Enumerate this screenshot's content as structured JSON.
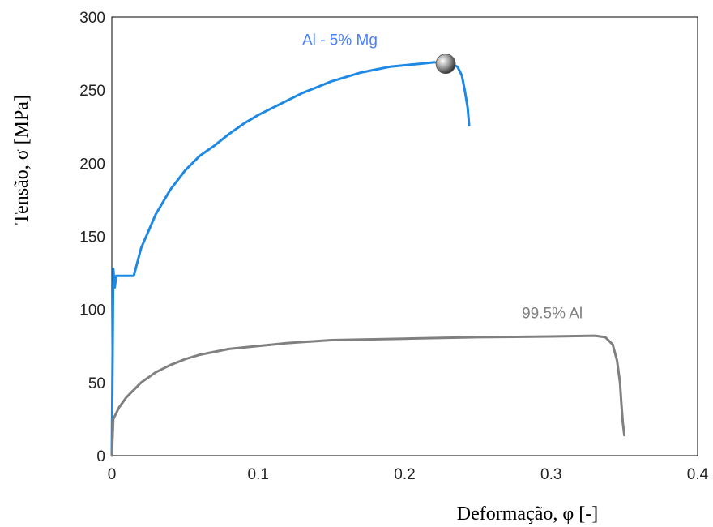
{
  "chart_data": {
    "type": "line",
    "title": "",
    "xlabel": "Deformação, φ [-]",
    "ylabel": "Tensão, σ [MPa]",
    "xlim": [
      0,
      0.4
    ],
    "ylim": [
      0,
      300
    ],
    "xticks": [
      0,
      0.1,
      0.2,
      0.3,
      0.4
    ],
    "xtick_labels": [
      "0",
      "0.1",
      "0.2",
      "0.3",
      "0.4"
    ],
    "yticks": [
      0,
      50,
      100,
      150,
      200,
      250,
      300
    ],
    "ytick_labels": [
      "0",
      "50",
      "100",
      "150",
      "200",
      "250",
      "300"
    ],
    "grid": false,
    "legend": "none",
    "series": [
      {
        "name": "Al - 5% Mg",
        "color": "#1e88e5",
        "x": [
          0,
          0.001,
          0.002,
          0.003,
          0.004,
          0.012,
          0.015,
          0.02,
          0.03,
          0.04,
          0.05,
          0.06,
          0.07,
          0.08,
          0.09,
          0.1,
          0.11,
          0.12,
          0.13,
          0.14,
          0.15,
          0.16,
          0.17,
          0.18,
          0.19,
          0.2,
          0.21,
          0.22,
          0.227,
          0.232,
          0.236,
          0.239,
          0.241,
          0.243,
          0.244
        ],
        "y": [
          0,
          128,
          115,
          123,
          123,
          123,
          123,
          142,
          165,
          182,
          195,
          205,
          212,
          220,
          227,
          233,
          238,
          243,
          248,
          252,
          256,
          259,
          262,
          264,
          266,
          267,
          268,
          269,
          269,
          268,
          266,
          260,
          250,
          238,
          226
        ],
        "end_marker": {
          "x": 0.228,
          "y": 268
        }
      },
      {
        "name": "99.5% Al",
        "color": "#808080",
        "x": [
          0,
          0.001,
          0.005,
          0.01,
          0.02,
          0.03,
          0.04,
          0.05,
          0.06,
          0.07,
          0.08,
          0.1,
          0.12,
          0.15,
          0.2,
          0.25,
          0.3,
          0.33,
          0.337,
          0.342,
          0.345,
          0.347,
          0.348,
          0.349,
          0.35
        ],
        "y": [
          0,
          25,
          33,
          40,
          50,
          57,
          62,
          66,
          69,
          71,
          73,
          75,
          77,
          79,
          80,
          81,
          81.5,
          82,
          81,
          76,
          65,
          50,
          35,
          22,
          14
        ]
      }
    ],
    "annotations": [
      {
        "text": "Al - 5% Mg",
        "x": 0.13,
        "y": 281,
        "color": "#4a7fff"
      },
      {
        "text": "99.5% Al",
        "x": 0.28,
        "y": 94,
        "color": "#808080"
      }
    ]
  }
}
